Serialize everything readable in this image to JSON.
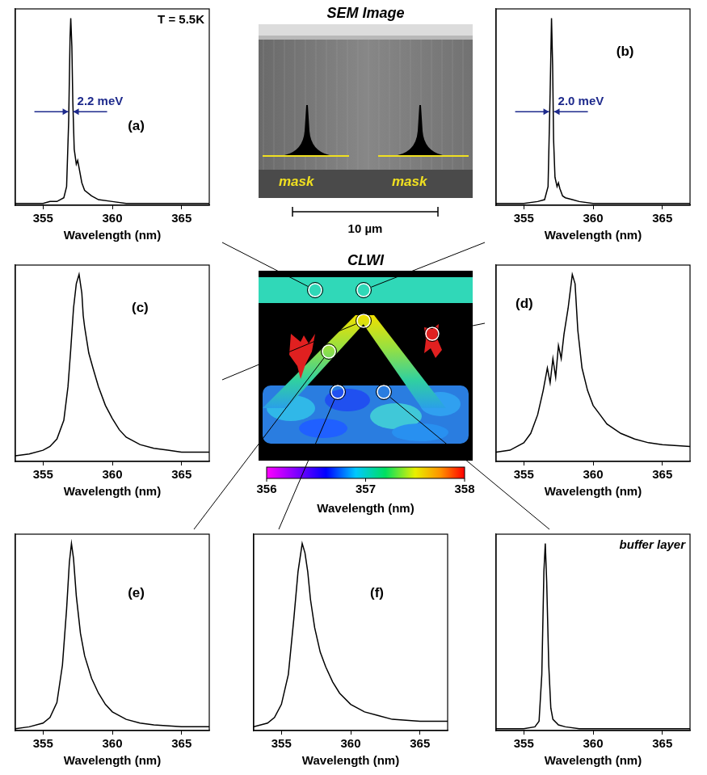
{
  "chart_data": [
    {
      "type": "line",
      "panel_label": "(a)",
      "annotation": "T = 5.5K",
      "fwhm": "2.2 meV",
      "xlabel": "Wavelength (nm)",
      "color": "#000000",
      "x": [
        353,
        354,
        355,
        355.5,
        356,
        356.5,
        356.7,
        356.85,
        356.95,
        357.0,
        357.08,
        357.15,
        357.25,
        357.4,
        357.5,
        357.6,
        357.8,
        358,
        358.5,
        359,
        360,
        361,
        363,
        365,
        367
      ],
      "values": [
        0.01,
        0.01,
        0.01,
        0.02,
        0.02,
        0.04,
        0.1,
        0.45,
        0.9,
        1.0,
        0.85,
        0.55,
        0.3,
        0.22,
        0.24,
        0.2,
        0.12,
        0.08,
        0.05,
        0.03,
        0.02,
        0.01,
        0.01,
        0.01,
        0.01
      ],
      "xlim": [
        353,
        367
      ],
      "xticks": [
        355,
        360,
        365
      ],
      "ylim": [
        0,
        1.05
      ],
      "tick_labels": "x"
    },
    {
      "type": "line",
      "panel_label": "(b)",
      "fwhm": "2.0 meV",
      "xlabel": "Wavelength (nm)",
      "color": "#000000",
      "x": [
        353,
        354,
        355,
        356,
        356.5,
        356.75,
        356.9,
        357.0,
        357.08,
        357.15,
        357.25,
        357.4,
        357.5,
        357.6,
        357.8,
        358,
        358.5,
        359,
        360,
        362,
        367
      ],
      "values": [
        0.01,
        0.01,
        0.01,
        0.02,
        0.03,
        0.1,
        0.6,
        1.0,
        0.75,
        0.35,
        0.15,
        0.1,
        0.12,
        0.09,
        0.05,
        0.04,
        0.03,
        0.02,
        0.01,
        0.01,
        0.01
      ],
      "xlim": [
        353,
        367
      ],
      "xticks": [
        355,
        360,
        365
      ],
      "ylim": [
        0,
        1.05
      ],
      "tick_labels": "x"
    },
    {
      "type": "line",
      "panel_label": "(c)",
      "xlabel": "Wavelength (nm)",
      "color": "#000000",
      "x": [
        353,
        354,
        355,
        355.5,
        356,
        356.5,
        356.8,
        357,
        357.2,
        357.4,
        357.6,
        357.8,
        357.9,
        358,
        358.3,
        358.6,
        359,
        359.5,
        360,
        360.5,
        361,
        362,
        363,
        364,
        365,
        366,
        367
      ],
      "values": [
        0.03,
        0.04,
        0.06,
        0.08,
        0.12,
        0.22,
        0.4,
        0.6,
        0.82,
        0.95,
        1.0,
        0.9,
        0.78,
        0.72,
        0.58,
        0.5,
        0.4,
        0.3,
        0.23,
        0.17,
        0.13,
        0.09,
        0.07,
        0.06,
        0.05,
        0.05,
        0.05
      ],
      "xlim": [
        353,
        367
      ],
      "xticks": [
        355,
        360,
        365
      ],
      "ylim": [
        0,
        1.05
      ],
      "tick_labels": "x"
    },
    {
      "type": "line",
      "panel_label": "(d)",
      "xlabel": "Wavelength (nm)",
      "color": "#000000",
      "x": [
        353,
        354,
        355,
        355.5,
        356,
        356.4,
        356.7,
        356.9,
        357.1,
        357.3,
        357.5,
        357.7,
        357.9,
        358.2,
        358.5,
        358.7,
        358.9,
        359.2,
        359.6,
        360,
        360.5,
        361,
        362,
        363,
        364,
        365,
        367
      ],
      "values": [
        0.05,
        0.06,
        0.1,
        0.15,
        0.25,
        0.38,
        0.5,
        0.42,
        0.55,
        0.45,
        0.62,
        0.55,
        0.68,
        0.82,
        1.0,
        0.95,
        0.7,
        0.5,
        0.38,
        0.3,
        0.25,
        0.2,
        0.15,
        0.12,
        0.1,
        0.09,
        0.08
      ],
      "xlim": [
        353,
        367
      ],
      "xticks": [
        355,
        360,
        365
      ],
      "ylim": [
        0,
        1.05
      ],
      "tick_labels": "x"
    },
    {
      "type": "line",
      "panel_label": "(e)",
      "xlabel": "Wavelength (nm)",
      "color": "#000000",
      "x": [
        353,
        354,
        355,
        355.5,
        356,
        356.4,
        356.7,
        356.9,
        357.05,
        357.2,
        357.4,
        357.7,
        358,
        358.5,
        359,
        359.5,
        360,
        361,
        362,
        363,
        365,
        367
      ],
      "values": [
        0.01,
        0.02,
        0.04,
        0.07,
        0.15,
        0.35,
        0.65,
        0.9,
        1.0,
        0.92,
        0.72,
        0.52,
        0.4,
        0.28,
        0.2,
        0.14,
        0.1,
        0.06,
        0.04,
        0.03,
        0.02,
        0.02
      ],
      "xlim": [
        353,
        367
      ],
      "xticks": [
        355,
        360,
        365
      ],
      "ylim": [
        0,
        1.05
      ],
      "tick_labels": "x"
    },
    {
      "type": "line",
      "panel_label": "(f)",
      "xlabel": "Wavelength (nm)",
      "color": "#000000",
      "x": [
        353,
        354,
        354.5,
        355,
        355.5,
        355.9,
        356.2,
        356.5,
        356.7,
        356.9,
        357.1,
        357.4,
        357.8,
        358.2,
        358.7,
        359.2,
        360,
        361,
        362,
        363,
        365,
        367
      ],
      "values": [
        0.02,
        0.04,
        0.07,
        0.14,
        0.3,
        0.6,
        0.85,
        1.0,
        0.95,
        0.85,
        0.7,
        0.55,
        0.42,
        0.34,
        0.26,
        0.2,
        0.14,
        0.1,
        0.08,
        0.06,
        0.05,
        0.05
      ],
      "xlim": [
        353,
        367
      ],
      "xticks": [
        355,
        360,
        365
      ],
      "ylim": [
        0,
        1.05
      ],
      "tick_labels": "x"
    },
    {
      "type": "line",
      "annotation": "buffer layer",
      "xlabel": "Wavelength (nm)",
      "color": "#000000",
      "x": [
        353,
        355,
        355.8,
        356.1,
        356.3,
        356.45,
        356.55,
        356.65,
        356.8,
        356.95,
        357.1,
        357.5,
        358,
        359,
        367
      ],
      "values": [
        0.01,
        0.01,
        0.02,
        0.05,
        0.3,
        0.85,
        1.0,
        0.8,
        0.35,
        0.12,
        0.06,
        0.03,
        0.02,
        0.01,
        0.01
      ],
      "xlim": [
        353,
        367
      ],
      "xticks": [
        355,
        360,
        365
      ],
      "ylim": [
        0,
        1.05
      ],
      "tick_labels": "x"
    }
  ],
  "sem_image": {
    "title": "SEM Image",
    "mask_labels": [
      "mask",
      "mask"
    ],
    "scale_bar": "10 µm"
  },
  "clwi_map": {
    "title": "CLWI",
    "colorbar": {
      "range": [
        356,
        358
      ],
      "ticks": [
        356,
        357,
        358
      ],
      "label": "Wavelength (nm)"
    }
  }
}
